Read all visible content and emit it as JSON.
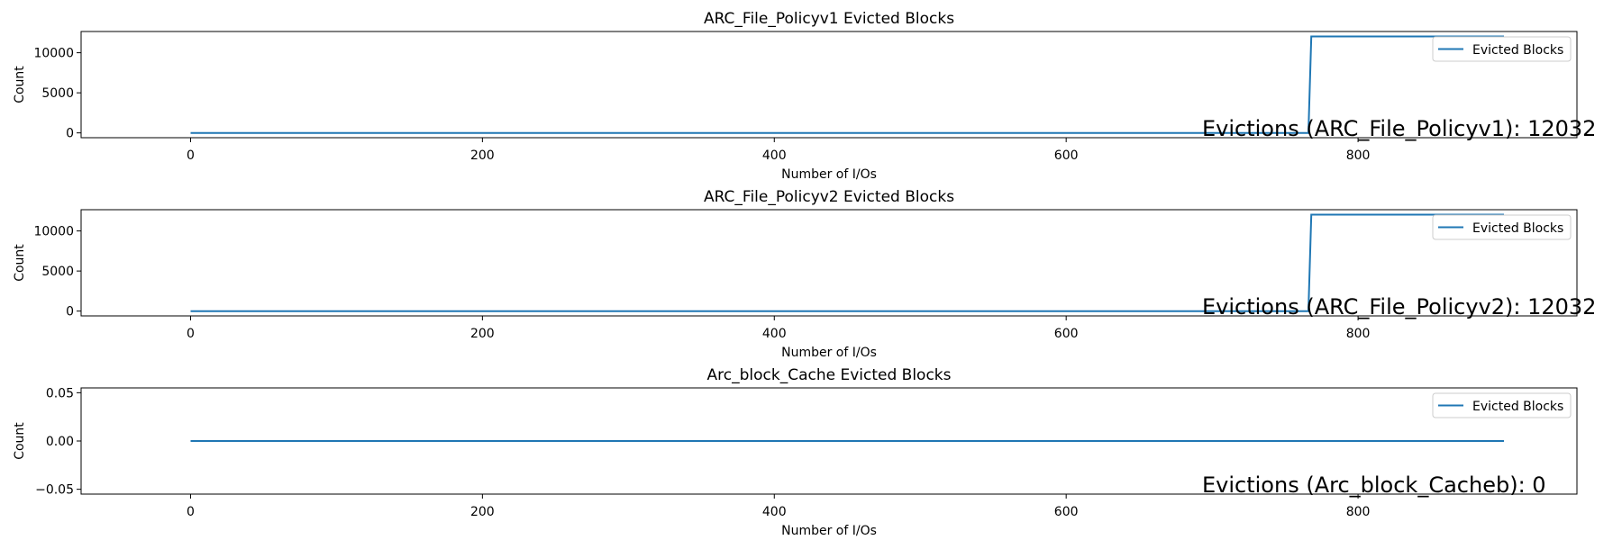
{
  "chart_data": [
    {
      "type": "line",
      "title": "ARC_File_Policyv1 Evicted Blocks",
      "xlabel": "Number of I/Os",
      "ylabel": "Count",
      "xlim": [
        -75,
        950
      ],
      "ylim": [
        -600,
        12650
      ],
      "xticks": [
        0,
        200,
        400,
        600,
        800
      ],
      "xtick_labels": [
        "0",
        "200",
        "400",
        "600",
        "800"
      ],
      "yticks": [
        0,
        5000,
        10000
      ],
      "ytick_labels": [
        "0",
        "5000",
        "10000"
      ],
      "grid": false,
      "legend_position": "top-right",
      "series": [
        {
          "name": "Evicted Blocks",
          "color": "#1f77b4",
          "x": [
            0,
            766,
            768,
            900
          ],
          "y": [
            0,
            0,
            12032,
            12032
          ]
        }
      ],
      "annotation": "Evictions (ARC_File_Policyv1): 12032"
    },
    {
      "type": "line",
      "title": "ARC_File_Policyv2 Evicted Blocks",
      "xlabel": "Number of I/Os",
      "ylabel": "Count",
      "xlim": [
        -75,
        950
      ],
      "ylim": [
        -600,
        12650
      ],
      "xticks": [
        0,
        200,
        400,
        600,
        800
      ],
      "xtick_labels": [
        "0",
        "200",
        "400",
        "600",
        "800"
      ],
      "yticks": [
        0,
        5000,
        10000
      ],
      "ytick_labels": [
        "0",
        "5000",
        "10000"
      ],
      "grid": false,
      "legend_position": "top-right",
      "series": [
        {
          "name": "Evicted Blocks",
          "color": "#1f77b4",
          "x": [
            0,
            766,
            768,
            900
          ],
          "y": [
            0,
            0,
            12032,
            12032
          ]
        }
      ],
      "annotation": "Evictions (ARC_File_Policyv2): 12032"
    },
    {
      "type": "line",
      "title": "Arc_block_Cache Evicted Blocks",
      "xlabel": "Number of I/Os",
      "ylabel": "Count",
      "xlim": [
        -75,
        950
      ],
      "ylim": [
        -0.055,
        0.055
      ],
      "xticks": [
        0,
        200,
        400,
        600,
        800
      ],
      "xtick_labels": [
        "0",
        "200",
        "400",
        "600",
        "800"
      ],
      "yticks": [
        -0.05,
        0,
        0.05
      ],
      "ytick_labels": [
        "−0.05",
        "0.00",
        "0.05"
      ],
      "grid": false,
      "legend_position": "top-right",
      "series": [
        {
          "name": "Evicted Blocks",
          "color": "#1f77b4",
          "x": [
            0,
            900
          ],
          "y": [
            0,
            0
          ]
        }
      ],
      "annotation": "Evictions (Arc_block_Cacheb): 0"
    }
  ]
}
